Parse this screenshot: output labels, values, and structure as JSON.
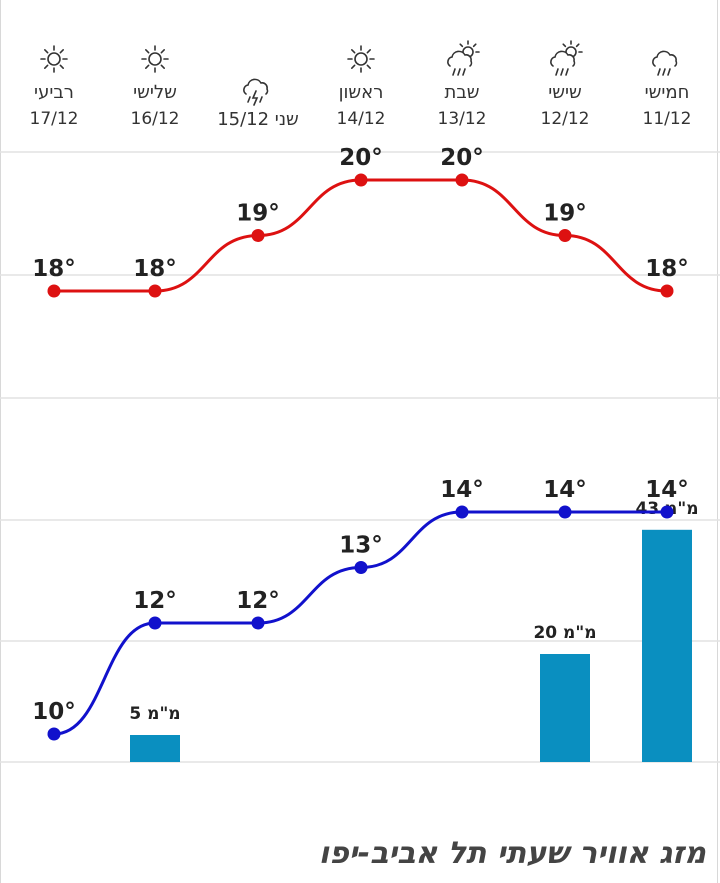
{
  "title": "מזג אוויר שעתי תל אביב-יפו",
  "chart_data": {
    "type": "line",
    "days": [
      {
        "day": "רביעי",
        "date": "17/12",
        "icon": "sun-icon",
        "high": 18,
        "low": 10,
        "rain_mm": null
      },
      {
        "day": "שלישי",
        "date": "16/12",
        "icon": "sun-icon",
        "high": 18,
        "low": 12,
        "rain_mm": 5
      },
      {
        "day": "שני",
        "date": "15/12",
        "icon": "rain-thunder-icon",
        "high": 19,
        "low": 12,
        "rain_mm": null
      },
      {
        "day": "ראשון",
        "date": "14/12",
        "icon": "sun-icon",
        "high": 20,
        "low": 13,
        "rain_mm": null
      },
      {
        "day": "שבת",
        "date": "13/12",
        "icon": "sun-cloud-rain-icon",
        "high": 20,
        "low": 14,
        "rain_mm": null
      },
      {
        "day": "שישי",
        "date": "12/12",
        "icon": "sun-cloud-rain-icon",
        "high": 19,
        "low": 14,
        "rain_mm": 20
      },
      {
        "day": "חמישי",
        "date": "11/12",
        "icon": "cloud-rain-icon",
        "high": 18,
        "low": 14,
        "rain_mm": 43
      }
    ],
    "degree_symbol": "°",
    "rain_unit": "מ\"מ",
    "series": [
      {
        "key": "high",
        "color": "#dd1111"
      },
      {
        "key": "low",
        "color": "#1111cc"
      }
    ],
    "rain_color": "#0a8fc0",
    "grid": true
  }
}
